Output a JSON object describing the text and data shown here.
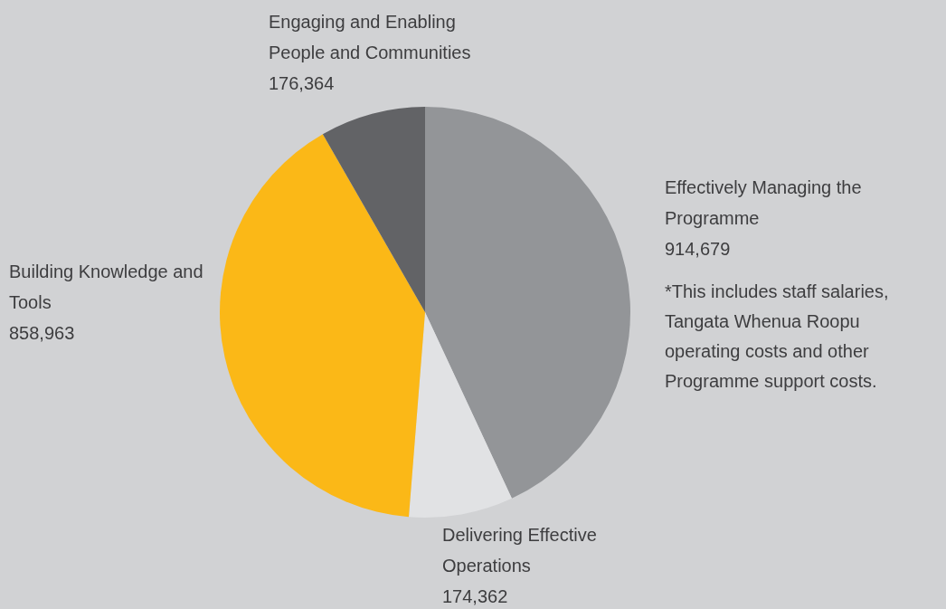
{
  "chart_data": {
    "type": "pie",
    "categories": [
      "Effectively Managing the Programme",
      "Delivering Effective Operations",
      "Building Knowledge and Tools",
      "Engaging and Enabling People and Communities"
    ],
    "values": [
      914679,
      174362,
      858963,
      176364
    ],
    "colors": [
      "#939598",
      "#e1e2e4",
      "#fbb817",
      "#626366"
    ],
    "value_labels": [
      "914,679",
      "174,362",
      "858,963",
      "176,364"
    ],
    "legend": false,
    "annotations": [
      "*This includes staff salaries, Tangata Whenua Roopu operating costs and other Programme support costs."
    ]
  }
}
